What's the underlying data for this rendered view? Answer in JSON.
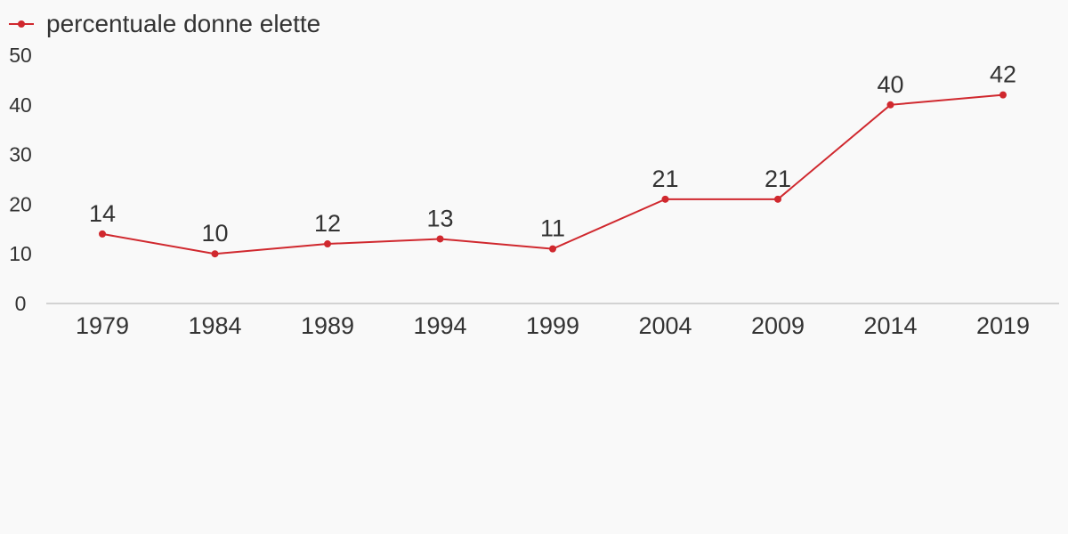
{
  "chart_data": {
    "type": "line",
    "categories": [
      "1979",
      "1984",
      "1989",
      "1994",
      "1999",
      "2004",
      "2009",
      "2014",
      "2019"
    ],
    "series": [
      {
        "name": "percentuale donne elette",
        "values": [
          14,
          10,
          12,
          13,
          11,
          21,
          21,
          40,
          42
        ],
        "color": "#d0282e"
      }
    ],
    "ylim": [
      0,
      50
    ],
    "yticks": [
      0,
      10,
      20,
      30,
      40,
      50
    ],
    "grid": false,
    "legend": "top-left",
    "data_labels": true,
    "axis_color": "#d3d3d3",
    "text_color": "#333333"
  }
}
